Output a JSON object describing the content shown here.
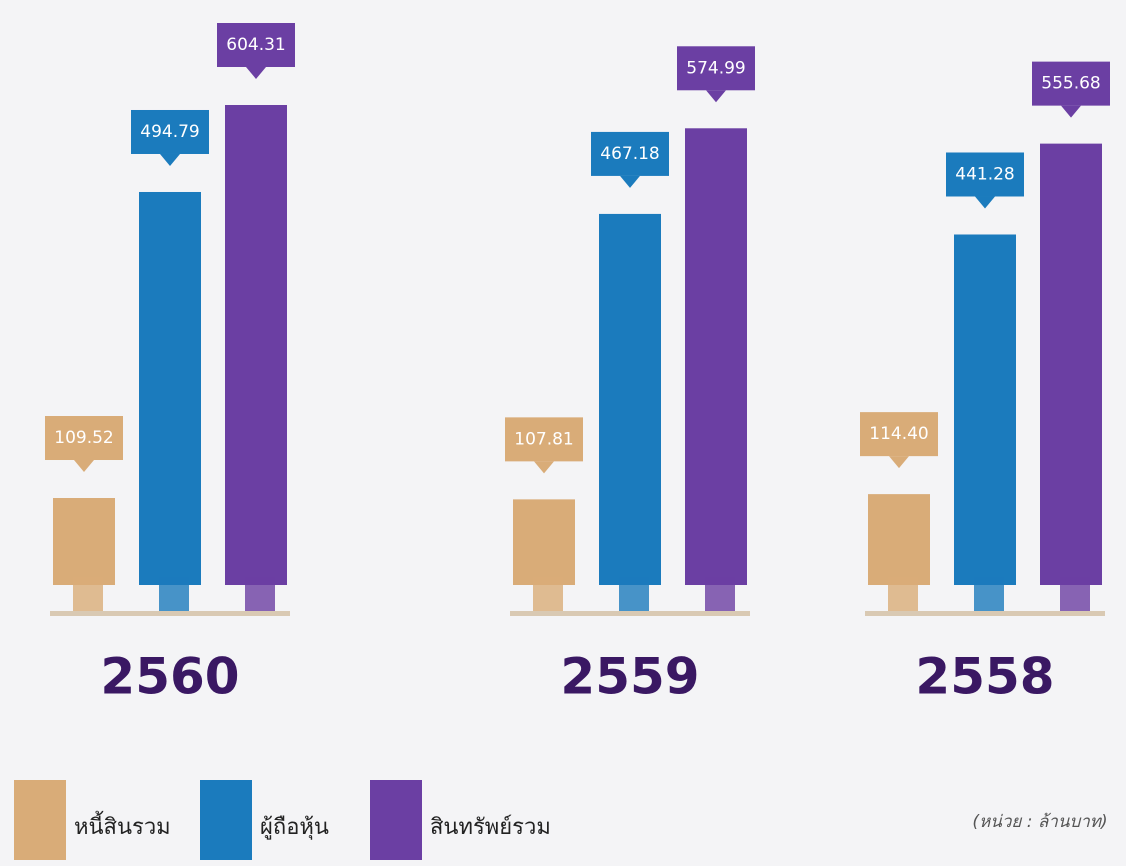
{
  "chart_data": {
    "type": "bar",
    "categories": [
      "2560",
      "2559",
      "2558"
    ],
    "series": [
      {
        "name": "หนี้สินรวม",
        "color": "#d9ac78",
        "values": [
          109.52,
          107.81,
          114.4
        ],
        "value_labels": [
          "109.52",
          "107.81",
          "114.40"
        ]
      },
      {
        "name": "ผู้ถือหุ้น",
        "color": "#1b7bbd",
        "values": [
          494.79,
          467.18,
          441.28
        ],
        "value_labels": [
          "494.79",
          "467.18",
          "441.28"
        ]
      },
      {
        "name": "สินทรัพย์รวม",
        "color": "#6b3fa3",
        "values": [
          604.31,
          574.99,
          555.68
        ],
        "value_labels": [
          "604.31",
          "574.99",
          "555.68"
        ]
      }
    ],
    "unit_note": "(หน่วย : ล้านบาท)"
  }
}
